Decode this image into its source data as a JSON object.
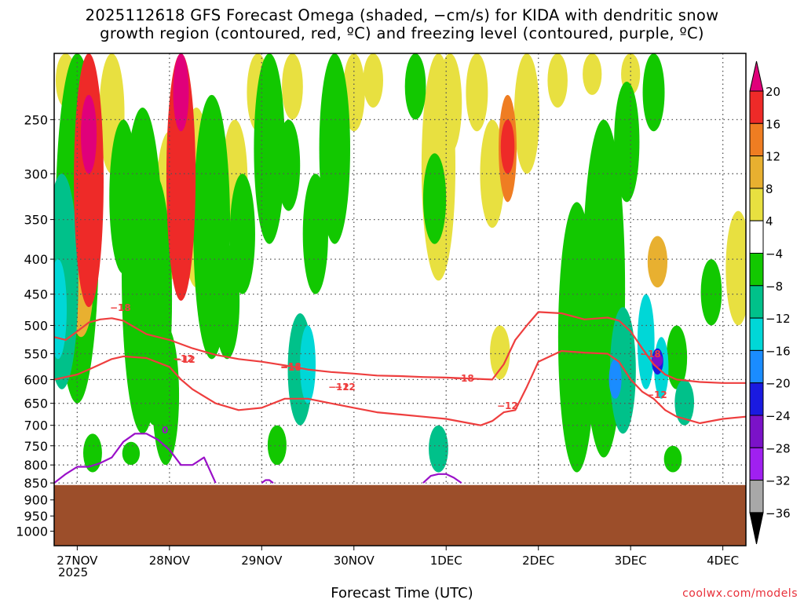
{
  "title_line1": "2025112618 GFS Forecast Omega (shaded, −cm/s) for KIDA with dendritic snow",
  "title_line2": "growth region (contoured, red, ºC) and freezing level (contoured, purple, ºC)",
  "credit": "coolwx.com/models",
  "chart_data": {
    "type": "heatmap",
    "title": "2025112618 GFS Forecast Omega (shaded, −cm/s) for KIDA with dendritic snow growth region (contoured, red, ºC) and freezing level (contoured, purple, ºC)",
    "xlabel": "Forecast Time (UTC)",
    "ylabel": "",
    "x_ticks": [
      "27NOV",
      "28NOV",
      "29NOV",
      "30NOV",
      "1DEC",
      "2DEC",
      "3DEC",
      "4DEC"
    ],
    "x_sublabel": "2025",
    "x_range_hours": [
      -6,
      174
    ],
    "y_ticks": [
      250,
      300,
      350,
      400,
      450,
      500,
      550,
      600,
      650,
      700,
      750,
      800,
      850,
      900,
      950,
      1000
    ],
    "y_axis": "pressure (hPa), log scale, inverted",
    "y_range": [
      1050,
      200
    ],
    "grid": "dotted",
    "colorbar": {
      "labels": [
        "20",
        "16",
        "12",
        "8",
        "4",
        "−4",
        "−8",
        "−12",
        "−16",
        "−20",
        "−24",
        "−28",
        "−32",
        "−36"
      ],
      "colors": [
        "#e0007a",
        "#ee2a28",
        "#ef7d22",
        "#e8b030",
        "#e8e040",
        "#ffffff",
        "#12c800",
        "#00c18a",
        "#00d7d7",
        "#1a8cff",
        "#1a1ae0",
        "#7b12c8",
        "#a020f0",
        "#a8a8a8",
        "#000000"
      ]
    },
    "terrain": {
      "pressure_top_hPa": 856,
      "color": "#9c4e2a"
    },
    "omega_regions": [
      {
        "t": 3,
        "p_top": 200,
        "p_bot": 470,
        "value": 16
      },
      {
        "t": 3,
        "p_top": 230,
        "p_bot": 300,
        "value": 20
      },
      {
        "t": 1,
        "p_top": 350,
        "p_bot": 520,
        "value": 8
      },
      {
        "t": 9,
        "p_top": 200,
        "p_bot": 300,
        "value": 6
      },
      {
        "t": -3,
        "p_top": 200,
        "p_bot": 240,
        "value": 6
      },
      {
        "t": 27,
        "p_top": 200,
        "p_bot": 460,
        "value": 16
      },
      {
        "t": 27,
        "p_top": 200,
        "p_bot": 260,
        "value": 20
      },
      {
        "t": 31,
        "p_top": 240,
        "p_bot": 440,
        "value": 6
      },
      {
        "t": 24,
        "p_top": 260,
        "p_bot": 430,
        "value": 6
      },
      {
        "t": 41,
        "p_top": 250,
        "p_bot": 380,
        "value": 6
      },
      {
        "t": 47,
        "p_top": 200,
        "p_bot": 260,
        "value": 5
      },
      {
        "t": 56,
        "p_top": 200,
        "p_bot": 250,
        "value": 5
      },
      {
        "t": 72,
        "p_top": 200,
        "p_bot": 260,
        "value": 5
      },
      {
        "t": 77,
        "p_top": 200,
        "p_bot": 240,
        "value": 5
      },
      {
        "t": 94,
        "p_top": 200,
        "p_bot": 430,
        "value": 6
      },
      {
        "t": 97,
        "p_top": 200,
        "p_bot": 280,
        "value": 6
      },
      {
        "t": 108,
        "p_top": 250,
        "p_bot": 360,
        "value": 6
      },
      {
        "t": 112,
        "p_top": 230,
        "p_bot": 330,
        "value": 12
      },
      {
        "t": 112,
        "p_top": 250,
        "p_bot": 300,
        "value": 16
      },
      {
        "t": 117,
        "p_top": 200,
        "p_bot": 300,
        "value": 5
      },
      {
        "t": 104,
        "p_top": 200,
        "p_bot": 260,
        "value": 5
      },
      {
        "t": 125,
        "p_top": 200,
        "p_bot": 240,
        "value": 5
      },
      {
        "t": 134,
        "p_top": 200,
        "p_bot": 230,
        "value": 5
      },
      {
        "t": 144,
        "p_top": 200,
        "p_bot": 230,
        "value": 5
      },
      {
        "t": 151,
        "p_top": 370,
        "p_bot": 440,
        "value": 8
      },
      {
        "t": 172,
        "p_top": 340,
        "p_bot": 500,
        "value": 5
      },
      {
        "t": 110,
        "p_top": 500,
        "p_bot": 600,
        "value": 5
      },
      {
        "t": 0,
        "p_top": 200,
        "p_bot": 650,
        "value": -6
      },
      {
        "t": -4,
        "p_top": 300,
        "p_bot": 620,
        "value": -8
      },
      {
        "t": -5,
        "p_top": 400,
        "p_bot": 560,
        "value": -12
      },
      {
        "t": 17,
        "p_top": 240,
        "p_bot": 720,
        "value": -6
      },
      {
        "t": 20,
        "p_top": 300,
        "p_bot": 700,
        "value": -6
      },
      {
        "t": 12,
        "p_top": 250,
        "p_bot": 420,
        "value": -6
      },
      {
        "t": 23,
        "p_top": 500,
        "p_bot": 800,
        "value": -6
      },
      {
        "t": 35,
        "p_top": 230,
        "p_bot": 560,
        "value": -6
      },
      {
        "t": 39,
        "p_top": 380,
        "p_bot": 560,
        "value": -6
      },
      {
        "t": 43,
        "p_top": 300,
        "p_bot": 450,
        "value": -6
      },
      {
        "t": 50,
        "p_top": 200,
        "p_bot": 380,
        "value": -6
      },
      {
        "t": 55,
        "p_top": 250,
        "p_bot": 340,
        "value": -6
      },
      {
        "t": 58,
        "p_top": 480,
        "p_bot": 700,
        "value": -8
      },
      {
        "t": 60,
        "p_top": 500,
        "p_bot": 650,
        "value": -12
      },
      {
        "t": 62,
        "p_top": 300,
        "p_bot": 450,
        "value": -6
      },
      {
        "t": 67,
        "p_top": 200,
        "p_bot": 380,
        "value": -6
      },
      {
        "t": 52,
        "p_top": 700,
        "p_bot": 800,
        "value": -6
      },
      {
        "t": 4,
        "p_top": 720,
        "p_bot": 820,
        "value": -6
      },
      {
        "t": 14,
        "p_top": 740,
        "p_bot": 800,
        "value": -6
      },
      {
        "t": 94,
        "p_top": 700,
        "p_bot": 820,
        "value": -8
      },
      {
        "t": 93,
        "p_top": 280,
        "p_bot": 380,
        "value": -6
      },
      {
        "t": 88,
        "p_top": 200,
        "p_bot": 250,
        "value": -6
      },
      {
        "t": 130,
        "p_top": 330,
        "p_bot": 820,
        "value": -6
      },
      {
        "t": 137,
        "p_top": 250,
        "p_bot": 780,
        "value": -6
      },
      {
        "t": 143,
        "p_top": 220,
        "p_bot": 330,
        "value": -6
      },
      {
        "t": 148,
        "p_top": 450,
        "p_bot": 620,
        "value": -12
      },
      {
        "t": 142,
        "p_top": 470,
        "p_bot": 720,
        "value": -10
      },
      {
        "t": 140,
        "p_top": 560,
        "p_bot": 640,
        "value": -16
      },
      {
        "t": 152,
        "p_top": 520,
        "p_bot": 640,
        "value": -12
      },
      {
        "t": 151,
        "p_top": 540,
        "p_bot": 590,
        "value": -20
      },
      {
        "t": 151,
        "p_top": 550,
        "p_bot": 575,
        "value": -26
      },
      {
        "t": 156,
        "p_top": 500,
        "p_bot": 620,
        "value": -6
      },
      {
        "t": 155,
        "p_top": 750,
        "p_bot": 820,
        "value": -6
      },
      {
        "t": 158,
        "p_top": 600,
        "p_bot": 700,
        "value": -10
      },
      {
        "t": 165,
        "p_top": 400,
        "p_bot": 500,
        "value": -6
      },
      {
        "t": 150,
        "p_top": 200,
        "p_bot": 260,
        "value": -6
      }
    ],
    "contours": [
      {
        "name": "−18",
        "color": "#ee3e3e",
        "hours": [
          -6,
          -3,
          0,
          3,
          6,
          9,
          12,
          18,
          24,
          30,
          36,
          42,
          48,
          54,
          60,
          66,
          72,
          78,
          84,
          90,
          96,
          102,
          108,
          111,
          114,
          117,
          120,
          126,
          132,
          138,
          141,
          144,
          147,
          150,
          153,
          156,
          162,
          168,
          174
        ],
        "pressure": [
          520,
          525,
          510,
          495,
          490,
          488,
          492,
          515,
          525,
          540,
          552,
          560,
          565,
          572,
          580,
          585,
          588,
          592,
          593,
          595,
          596,
          598,
          600,
          570,
          525,
          500,
          478,
          480,
          490,
          487,
          492,
          510,
          540,
          570,
          590,
          600,
          605,
          607,
          607
        ]
      },
      {
        "name": "−12",
        "color": "#ee3e3e",
        "hours": [
          -6,
          -3,
          0,
          3,
          6,
          9,
          12,
          18,
          24,
          27,
          30,
          36,
          42,
          48,
          54,
          60,
          66,
          72,
          78,
          84,
          90,
          96,
          102,
          105,
          108,
          111,
          114,
          117,
          120,
          126,
          132,
          138,
          141,
          144,
          147,
          150,
          153,
          156,
          162,
          168,
          174
        ],
        "pressure": [
          600,
          595,
          590,
          580,
          570,
          560,
          555,
          558,
          575,
          600,
          620,
          650,
          665,
          660,
          640,
          640,
          650,
          660,
          670,
          675,
          680,
          685,
          695,
          700,
          690,
          670,
          665,
          615,
          565,
          545,
          548,
          550,
          565,
          600,
          625,
          640,
          665,
          680,
          695,
          685,
          680
        ]
      },
      {
        "name": "0",
        "color": "#9a10c8",
        "hours": [
          -6,
          -3,
          0,
          3,
          6,
          9,
          12,
          15,
          18,
          21,
          24,
          27,
          30,
          33,
          36
        ],
        "pressure": [
          850,
          825,
          805,
          805,
          795,
          780,
          740,
          720,
          720,
          735,
          760,
          800,
          800,
          780,
          850
        ]
      },
      {
        "name": "0-b",
        "color": "#9a10c8",
        "hours": [
          90,
          92,
          94,
          96,
          98,
          100
        ],
        "pressure": [
          850,
          830,
          825,
          825,
          835,
          850
        ]
      },
      {
        "name": "0-c",
        "color": "#9a10c8",
        "hours": [
          48,
          49,
          50,
          51
        ],
        "pressure": [
          850,
          842,
          842,
          850
        ]
      }
    ],
    "contour_labels": [
      "−18",
      "−12",
      "−12",
      "−18",
      "−12",
      "−18",
      "−12",
      "−18",
      "−12",
      "−12",
      "−18",
      "0"
    ]
  }
}
